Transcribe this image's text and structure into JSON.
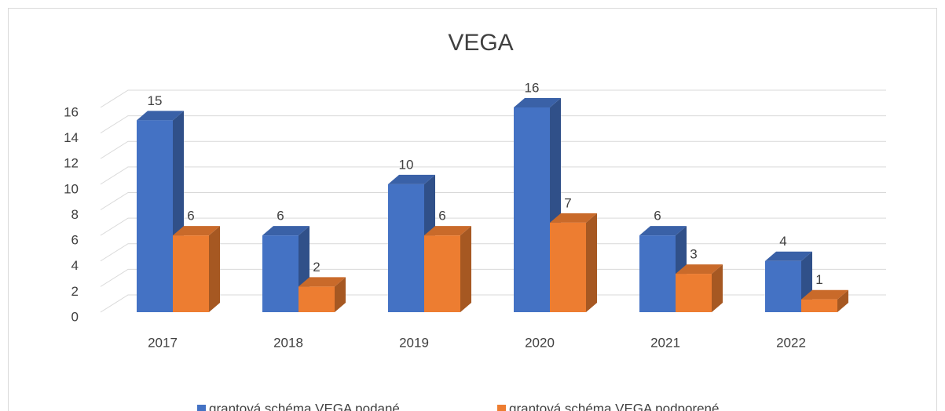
{
  "chart_data": {
    "type": "bar",
    "title": "VEGA",
    "categories": [
      "2017",
      "2018",
      "2019",
      "2020",
      "2021",
      "2022"
    ],
    "series": [
      {
        "name": "grantová schéma VEGA podané",
        "color": "#4472c4",
        "values": [
          15,
          6,
          10,
          16,
          6,
          4
        ]
      },
      {
        "name": "grantová schéma VEGA podporené",
        "color": "#ed7d31",
        "values": [
          6,
          2,
          6,
          7,
          3,
          1
        ]
      }
    ],
    "ylim": [
      0,
      16
    ],
    "yticks": [
      0,
      2,
      4,
      6,
      8,
      10,
      12,
      14,
      16
    ],
    "grid": true,
    "legend": "bottom"
  }
}
